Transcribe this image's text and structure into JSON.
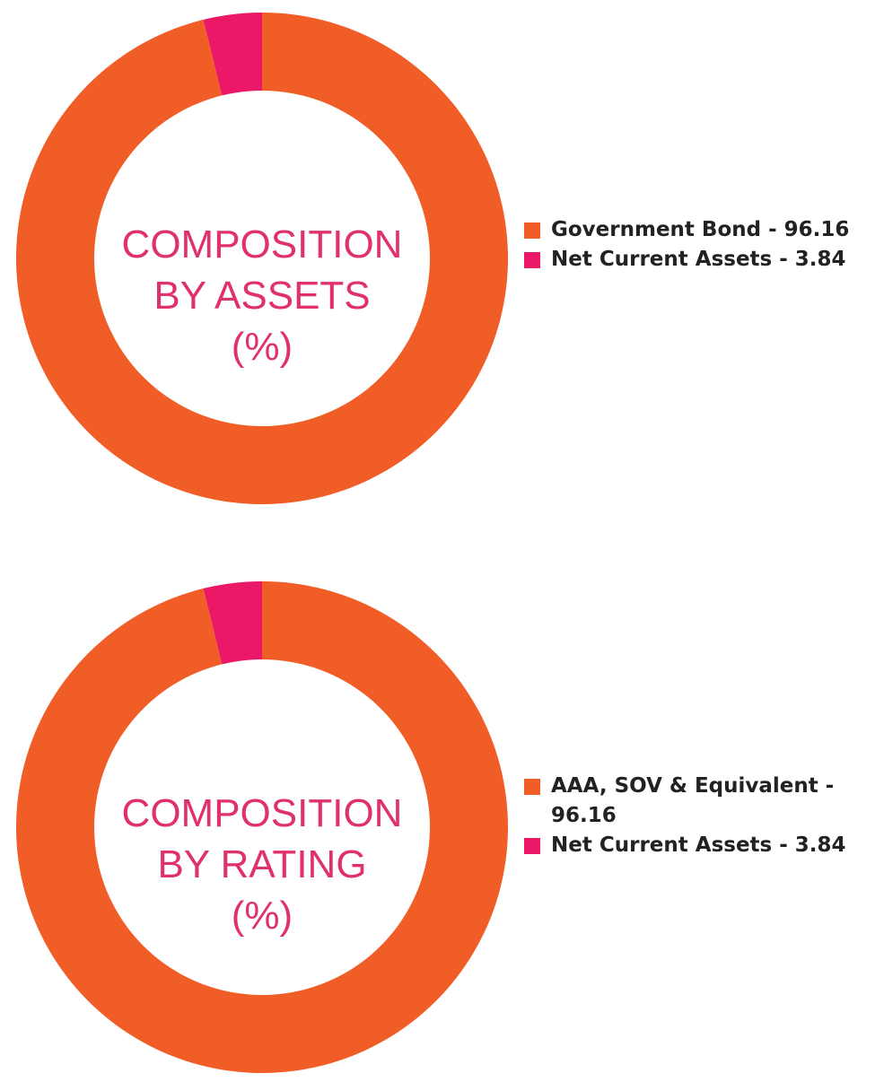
{
  "colors": {
    "primary": "#f15d27",
    "secondary": "#eb1868",
    "title": "#e0306f"
  },
  "chart_data": [
    {
      "type": "pie",
      "title_lines": [
        "COMPOSITION",
        "BY ASSETS",
        "(%)"
      ],
      "series": [
        {
          "name": "Government Bond - 96.16",
          "value": 96.16,
          "color": "#f15d27"
        },
        {
          "name": "Net Current Assets - 3.84",
          "value": 3.84,
          "color": "#eb1868"
        }
      ]
    },
    {
      "type": "pie",
      "title_lines": [
        "COMPOSITION",
        "BY RATING",
        "(%)"
      ],
      "series": [
        {
          "name": "AAA, SOV & Equivalent -",
          "name_cont": "96.16",
          "value": 96.16,
          "color": "#f15d27"
        },
        {
          "name": "Net Current Assets - 3.84",
          "value": 3.84,
          "color": "#eb1868"
        }
      ]
    }
  ]
}
